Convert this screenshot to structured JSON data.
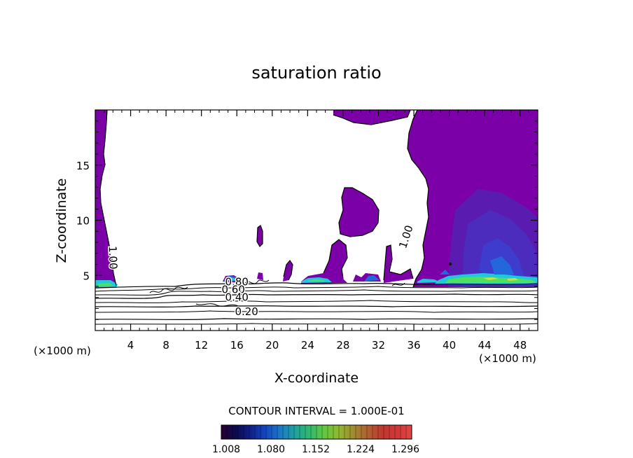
{
  "chart_data": {
    "type": "contour",
    "title": "saturation ratio",
    "xlabel": "X-coordinate",
    "ylabel": "Z-coordinate",
    "x_unit_left": "(×1000 m)",
    "x_unit_right": "(×1000 m)",
    "xlim": [
      0,
      50
    ],
    "ylim": [
      0,
      20
    ],
    "x_ticks": [
      4,
      8,
      12,
      16,
      20,
      24,
      28,
      32,
      36,
      40,
      44,
      48
    ],
    "y_ticks": [
      5,
      10,
      15
    ],
    "contour_interval_text": "CONTOUR INTERVAL = 1.000E-01",
    "contour_labels": [
      {
        "text": "1.00",
        "x": 1.6,
        "y": 6.6,
        "rotate": 88
      },
      {
        "text": "1.00",
        "x": 35.5,
        "y": 8.4,
        "rotate": -72
      },
      {
        "text": "0.80",
        "x": 16.0,
        "y": 4.1,
        "rotate": 0
      },
      {
        "text": "0.60",
        "x": 15.6,
        "y": 3.4,
        "rotate": 0
      },
      {
        "text": "0.40",
        "x": 16.0,
        "y": 2.7,
        "rotate": 0
      },
      {
        "text": "0.20",
        "x": 17.1,
        "y": 1.4,
        "rotate": 0
      }
    ],
    "colorbar": {
      "tick_labels": [
        "1.008",
        "1.080",
        "1.152",
        "1.224",
        "1.296"
      ],
      "colors": [
        "#2a0030",
        "#0a0a50",
        "#10208a",
        "#1446c0",
        "#1a78c8",
        "#20a0a0",
        "#30b870",
        "#60c840",
        "#90b830",
        "#a08c30",
        "#b06030",
        "#c03830",
        "#d03838",
        "#e04848"
      ]
    },
    "fill_colors": {
      "base": "#7b00a8",
      "dark": "#5a1cb0",
      "darker": "#4b2cbd",
      "deep": "#3d3ccc",
      "blue": "#2466dc",
      "cyan": "#20c8d8",
      "green": "#50e060",
      "yellow": "#c8e040"
    }
  }
}
